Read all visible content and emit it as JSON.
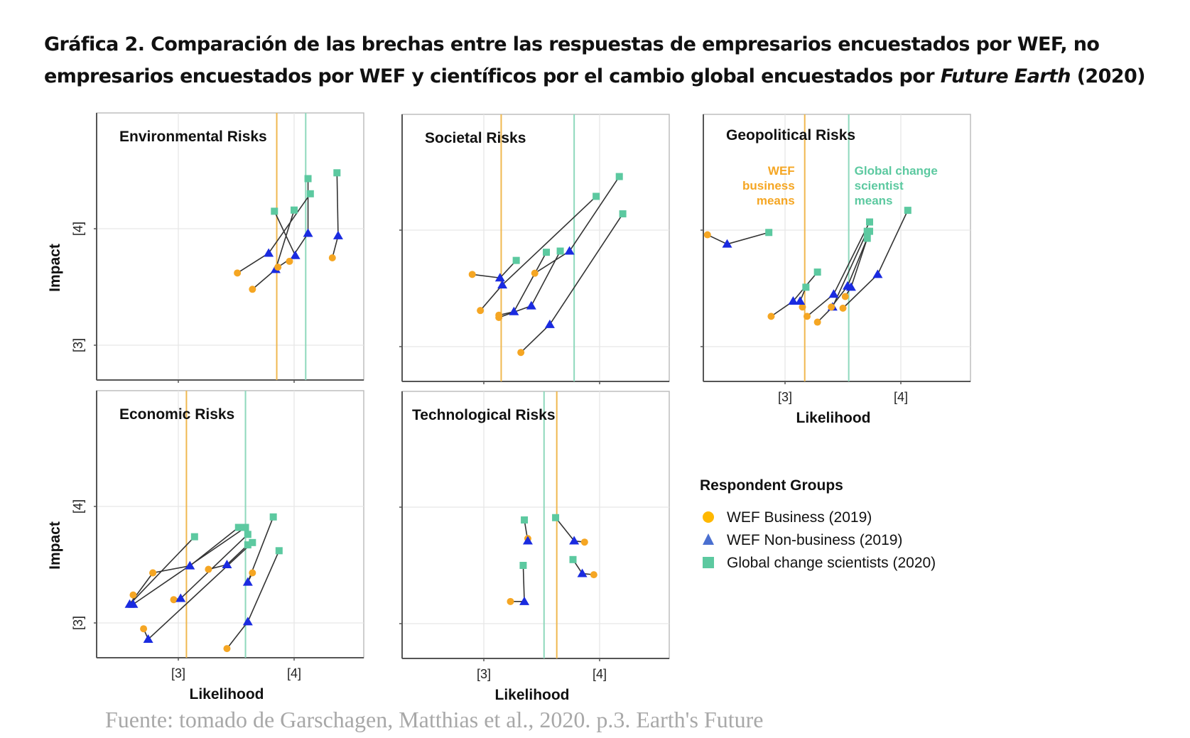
{
  "title": {
    "line1": "Gráfica 2. Comparación de las brechas entre las respuestas de empresarios encuestados por WEF, no",
    "line2_prefix": "empresarios encuestados por WEF y científicos por el cambio global encuestados por ",
    "line2_italic": "Future Earth",
    "line2_suffix": " (2020)"
  },
  "source": "Fuente: tomado de  Garschagen, Matthias et al., 2020. p.3. Earth's Future",
  "colors": {
    "business": "#F5A623",
    "nonbusiness": "#1A2BE0",
    "scientists": "#5CC9A0",
    "business_mean_line": "#F0B850",
    "scientist_mean_line": "#8ED8BC",
    "connector": "#333333",
    "grid": "#e6e6e6",
    "axis": "#555555"
  },
  "chart_data": {
    "type": "scatter",
    "title": "Respondent group gaps by risk category",
    "xlabel": "Likelihood",
    "ylabel": "Impact",
    "xlim": [
      2.3,
      4.55
    ],
    "ylim": [
      2.7,
      5.0
    ],
    "xticks": [
      3,
      4
    ],
    "yticks": [
      3,
      4
    ],
    "xtick_labels": [
      "[3]",
      "[4]"
    ],
    "ytick_labels": [
      "[3]",
      "[4]"
    ],
    "grid": true,
    "legend": {
      "title": "Respondent Groups",
      "position": "right",
      "entries": [
        {
          "key": "business",
          "label": "WEF Business (2019)",
          "marker": "circle"
        },
        {
          "key": "nonbusiness",
          "label": "WEF Non-business (2019)",
          "marker": "triangle"
        },
        {
          "key": "scientists",
          "label": "Global change scientists (2020)",
          "marker": "square"
        }
      ]
    },
    "panels": [
      {
        "name": "Environmental Risks",
        "business_mean_x": 3.85,
        "scientist_mean_x": 4.1,
        "risks": [
          {
            "business": [
              3.51,
              3.62
            ],
            "nonbusiness": [
              3.78,
              3.79
            ],
            "scientists": [
              4.14,
              4.3
            ]
          },
          {
            "business": [
              3.64,
              3.48
            ],
            "nonbusiness": [
              3.84,
              3.65
            ],
            "scientists": [
              4.0,
              4.16
            ]
          },
          {
            "business": [
              3.86,
              3.67
            ],
            "nonbusiness": [
              4.01,
              3.77
            ],
            "scientists": [
              3.83,
              4.15
            ]
          },
          {
            "business": [
              3.96,
              3.72
            ],
            "nonbusiness": [
              4.12,
              3.96
            ],
            "scientists": [
              4.12,
              4.43
            ]
          },
          {
            "business": [
              4.33,
              3.75
            ],
            "nonbusiness": [
              4.38,
              3.94
            ],
            "scientists": [
              4.37,
              4.48
            ]
          }
        ]
      },
      {
        "name": "Societal Risks",
        "business_mean_x": 3.15,
        "scientist_mean_x": 3.78,
        "risks": [
          {
            "business": [
              2.9,
              3.62
            ],
            "nonbusiness": [
              3.14,
              3.59
            ],
            "scientists": [
              3.28,
              3.74
            ]
          },
          {
            "business": [
              2.97,
              3.31
            ],
            "nonbusiness": [
              3.16,
              3.53
            ],
            "scientists": [
              3.97,
              4.29
            ]
          },
          {
            "business": [
              3.13,
              3.27
            ],
            "nonbusiness": [
              3.26,
              3.3
            ],
            "scientists": [
              3.54,
              3.81
            ]
          },
          {
            "business": [
              3.13,
              3.25
            ],
            "nonbusiness": [
              3.41,
              3.35
            ],
            "scientists": [
              3.66,
              3.82
            ]
          },
          {
            "business": [
              3.44,
              3.63
            ],
            "nonbusiness": [
              3.74,
              3.82
            ],
            "scientists": [
              4.17,
              4.46
            ]
          },
          {
            "business": [
              3.32,
              2.95
            ],
            "nonbusiness": [
              3.57,
              3.19
            ],
            "scientists": [
              4.2,
              4.14
            ]
          }
        ]
      },
      {
        "name": "Geopolitical Risks",
        "business_mean_x": 3.17,
        "scientist_mean_x": 3.55,
        "annotations": [
          {
            "text": [
              "WEF",
              "business",
              "means"
            ],
            "color_key": "business"
          },
          {
            "text": [
              "Global change",
              "scientist",
              "means"
            ],
            "color_key": "scientists"
          }
        ],
        "risks": [
          {
            "business": [
              2.33,
              3.96
            ],
            "nonbusiness": [
              2.5,
              3.88
            ],
            "scientists": [
              2.86,
              3.98
            ]
          },
          {
            "business": [
              2.88,
              3.26
            ],
            "nonbusiness": [
              3.07,
              3.39
            ],
            "scientists": [
              3.28,
              3.64
            ]
          },
          {
            "business": [
              3.15,
              3.34
            ],
            "nonbusiness": [
              3.13,
              3.39
            ],
            "scientists": [
              3.18,
              3.51
            ]
          },
          {
            "business": [
              3.19,
              3.26
            ],
            "nonbusiness": [
              3.42,
              3.45
            ],
            "scientists": [
              3.73,
              4.07
            ]
          },
          {
            "business": [
              3.28,
              3.21
            ],
            "nonbusiness": [
              3.41,
              3.34
            ],
            "scientists": [
              3.71,
              3.99
            ]
          },
          {
            "business": [
              3.4,
              3.34
            ],
            "nonbusiness": [
              3.54,
              3.52
            ],
            "scientists": [
              3.71,
              3.93
            ]
          },
          {
            "business": [
              3.52,
              3.43
            ],
            "nonbusiness": [
              3.57,
              3.51
            ],
            "scientists": [
              3.73,
              3.99
            ]
          },
          {
            "business": [
              3.5,
              3.33
            ],
            "nonbusiness": [
              3.8,
              3.62
            ],
            "scientists": [
              4.06,
              4.17
            ]
          }
        ]
      },
      {
        "name": "Economic Risks",
        "business_mean_x": 3.07,
        "scientist_mean_x": 3.58,
        "risks": [
          {
            "business": [
              2.78,
              3.43
            ],
            "nonbusiness": [
              2.58,
              3.16
            ],
            "scientists": [
              3.14,
              3.74
            ]
          },
          {
            "business": [
              2.78,
              3.43
            ],
            "nonbusiness": [
              3.1,
              3.49
            ],
            "scientists": [
              3.52,
              3.82
            ]
          },
          {
            "business": [
              2.61,
              3.24
            ],
            "nonbusiness": [
              2.61,
              3.16
            ],
            "scientists": [
              3.58,
              3.82
            ]
          },
          {
            "business": [
              2.96,
              3.2
            ],
            "nonbusiness": [
              3.02,
              3.21
            ],
            "scientists": [
              3.6,
              3.76
            ]
          },
          {
            "business": [
              3.26,
              3.46
            ],
            "nonbusiness": [
              3.42,
              3.5
            ],
            "scientists": [
              3.6,
              3.67
            ]
          },
          {
            "business": [
              2.7,
              2.95
            ],
            "nonbusiness": [
              2.74,
              2.86
            ],
            "scientists": [
              3.64,
              3.69
            ]
          },
          {
            "business": [
              3.64,
              3.43
            ],
            "nonbusiness": [
              3.6,
              3.35
            ],
            "scientists": [
              3.82,
              3.91
            ]
          },
          {
            "business": [
              3.42,
              2.78
            ],
            "nonbusiness": [
              3.6,
              3.01
            ],
            "scientists": [
              3.87,
              3.62
            ]
          }
        ]
      },
      {
        "name": "Technological Risks",
        "business_mean_x": 3.63,
        "scientist_mean_x": 3.52,
        "risks": [
          {
            "business": [
              3.38,
              3.73
            ],
            "nonbusiness": [
              3.38,
              3.71
            ],
            "scientists": [
              3.35,
              3.89
            ]
          },
          {
            "business": [
              3.23,
              3.19
            ],
            "nonbusiness": [
              3.35,
              3.19
            ],
            "scientists": [
              3.34,
              3.5
            ]
          },
          {
            "business": [
              3.87,
              3.7
            ],
            "nonbusiness": [
              3.78,
              3.71
            ],
            "scientists": [
              3.62,
              3.91
            ]
          },
          {
            "business": [
              3.95,
              3.42
            ],
            "nonbusiness": [
              3.85,
              3.43
            ],
            "scientists": [
              3.77,
              3.55
            ]
          }
        ]
      }
    ]
  }
}
